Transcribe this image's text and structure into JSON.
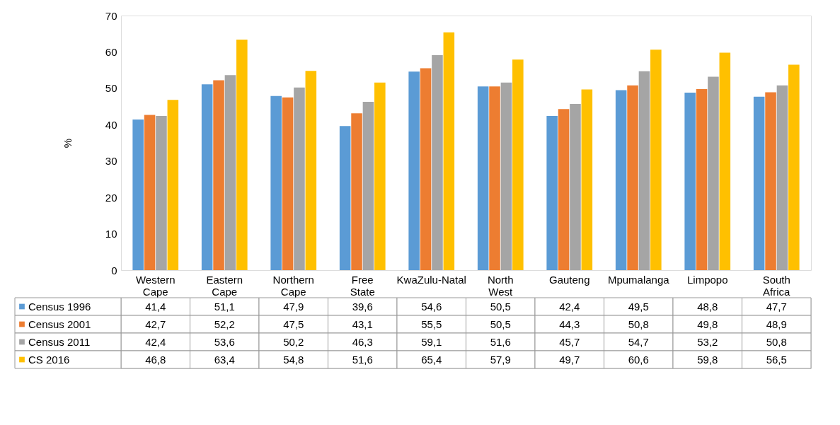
{
  "chart_data": {
    "type": "bar",
    "ylabel": "%",
    "categories": [
      "Western Cape",
      "Eastern Cape",
      "Northern Cape",
      "Free State",
      "KwaZulu-Natal",
      "North West",
      "Gauteng",
      "Mpumalanga",
      "Limpopo",
      "South Africa"
    ],
    "series": [
      {
        "name": "Census 1996",
        "color": "#5b9bd5",
        "values": [
          41.4,
          51.1,
          47.9,
          39.6,
          54.6,
          50.5,
          42.4,
          49.5,
          48.8,
          47.7
        ],
        "value_labels": [
          "41,4",
          "51,1",
          "47,9",
          "39,6",
          "54,6",
          "50,5",
          "42,4",
          "49,5",
          "48,8",
          "47,7"
        ]
      },
      {
        "name": "Census 2001",
        "color": "#ed7d31",
        "values": [
          42.7,
          52.2,
          47.5,
          43.1,
          55.5,
          50.5,
          44.3,
          50.8,
          49.8,
          48.9
        ],
        "value_labels": [
          "42,7",
          "52,2",
          "47,5",
          "43,1",
          "55,5",
          "50,5",
          "44,3",
          "50,8",
          "49,8",
          "48,9"
        ]
      },
      {
        "name": "Census 2011",
        "color": "#a5a5a5",
        "values": [
          42.4,
          53.6,
          50.2,
          46.3,
          59.1,
          51.6,
          45.7,
          54.7,
          53.2,
          50.8
        ],
        "value_labels": [
          "42,4",
          "53,6",
          "50,2",
          "46,3",
          "59,1",
          "51,6",
          "45,7",
          "54,7",
          "53,2",
          "50,8"
        ]
      },
      {
        "name": "CS 2016",
        "color": "#ffc000",
        "values": [
          46.8,
          63.4,
          54.8,
          51.6,
          65.4,
          57.9,
          49.7,
          60.6,
          59.8,
          56.5
        ],
        "value_labels": [
          "46,8",
          "63,4",
          "54,8",
          "51,6",
          "65,4",
          "57,9",
          "49,7",
          "60,6",
          "59,8",
          "56,5"
        ]
      }
    ],
    "ylim": [
      0,
      70
    ],
    "yticks": [
      0,
      10,
      20,
      30,
      40,
      50,
      60,
      70
    ],
    "legend": "bottom"
  }
}
